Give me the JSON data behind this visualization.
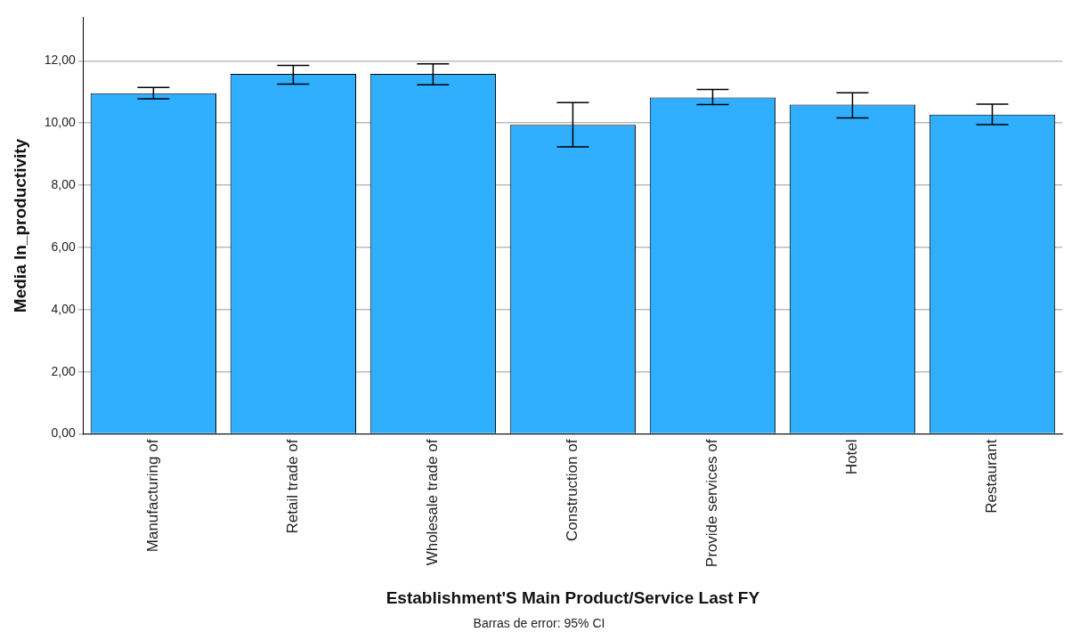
{
  "chart_data": {
    "type": "bar",
    "xlabel": "Establishment'S Main Product/Service Last FY",
    "ylabel": "Media ln_productivity",
    "categories": [
      "Manufacturing of",
      "Retail trade of",
      "Wholesale trade of",
      "Construction of",
      "Provide services of",
      "Hotel",
      "Restaurant"
    ],
    "values": [
      10.96,
      11.58,
      11.58,
      9.94,
      10.82,
      10.59,
      10.27
    ],
    "errors": [
      [
        10.78,
        11.14
      ],
      [
        11.25,
        11.85
      ],
      [
        11.23,
        11.9
      ],
      [
        9.23,
        10.66
      ],
      [
        10.59,
        11.08
      ],
      [
        10.16,
        10.97
      ],
      [
        9.95,
        10.61
      ]
    ],
    "color": "#30aeff",
    "ylim": [
      0,
      13.4
    ],
    "yticks": [
      {
        "value": 0,
        "label": "0,00"
      },
      {
        "value": 2,
        "label": "2,00"
      },
      {
        "value": 4,
        "label": "4,00"
      },
      {
        "value": 6,
        "label": "6,00"
      },
      {
        "value": 8,
        "label": "8,00"
      },
      {
        "value": 10,
        "label": "10,00"
      },
      {
        "value": 12,
        "label": "12,00"
      }
    ],
    "grid": "y",
    "legend": false,
    "annotations": [
      "Barras de error: 95% CI"
    ]
  }
}
